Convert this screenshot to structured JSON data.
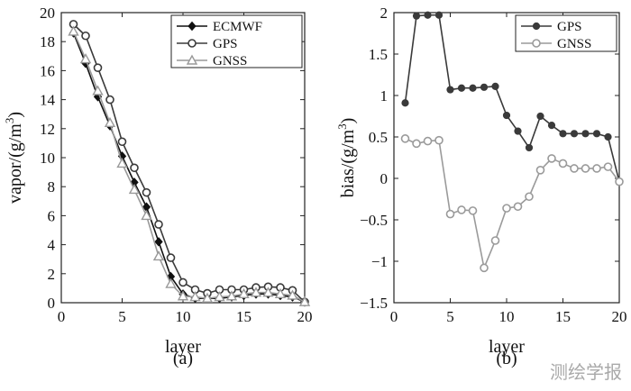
{
  "chart_data": [
    {
      "type": "line",
      "panel_label": "(a)",
      "xlabel": "layer",
      "ylabel": "vapor/(g/m",
      "ylabel_sup": "3",
      "ylabel_close": ")",
      "xlim": [
        0,
        20
      ],
      "ylim": [
        0,
        20
      ],
      "xticks": [
        0,
        5,
        10,
        15,
        20
      ],
      "yticks": [
        0,
        2,
        4,
        6,
        8,
        10,
        12,
        14,
        16,
        18,
        20
      ],
      "x": [
        1,
        2,
        3,
        4,
        5,
        6,
        7,
        8,
        9,
        10,
        11,
        12,
        13,
        14,
        15,
        16,
        17,
        18,
        19,
        20
      ],
      "legend_position": "top-right",
      "series": [
        {
          "name": "ECMWF",
          "marker": "diamond",
          "color": "#111111",
          "values": [
            18.6,
            16.5,
            14.2,
            12.2,
            10.1,
            8.3,
            6.6,
            4.2,
            1.8,
            0.6,
            0.3,
            0.3,
            0.3,
            0.4,
            0.5,
            0.6,
            0.6,
            0.5,
            0.4,
            0.05
          ]
        },
        {
          "name": "GPS",
          "marker": "circle",
          "color": "#3a3a3a",
          "values": [
            19.2,
            18.4,
            16.2,
            14.0,
            11.1,
            9.3,
            7.6,
            5.4,
            3.1,
            1.4,
            0.9,
            0.65,
            0.9,
            0.9,
            0.9,
            1.05,
            1.1,
            1.05,
            0.85,
            0.05
          ]
        },
        {
          "name": "GNSS",
          "marker": "triangle",
          "color": "#999999",
          "values": [
            18.7,
            16.8,
            14.6,
            12.4,
            9.6,
            7.8,
            6.0,
            3.2,
            1.3,
            0.45,
            0.4,
            0.3,
            0.4,
            0.45,
            0.6,
            0.7,
            0.7,
            0.6,
            0.5,
            0.05
          ]
        }
      ]
    },
    {
      "type": "line",
      "panel_label": "(b)",
      "xlabel": "layer",
      "ylabel": "bias/(g/m",
      "ylabel_sup": "3",
      "ylabel_close": ")",
      "xlim": [
        0,
        20
      ],
      "ylim": [
        -1.5,
        2
      ],
      "xticks": [
        0,
        5,
        10,
        15,
        20
      ],
      "yticks": [
        -1.5,
        -1,
        -0.5,
        0,
        0.5,
        1,
        1.5,
        2
      ],
      "ytick_labels": [
        "−1.5",
        "−1",
        "−0.5",
        "0",
        "0.5",
        "1",
        "1.5",
        "2"
      ],
      "x": [
        1,
        2,
        3,
        4,
        5,
        6,
        7,
        8,
        9,
        10,
        11,
        12,
        13,
        14,
        15,
        16,
        17,
        18,
        19,
        20
      ],
      "legend_position": "top-right",
      "series": [
        {
          "name": "GPS",
          "marker": "filled-circle",
          "color": "#3a3a3a",
          "values": [
            0.91,
            1.96,
            1.97,
            1.97,
            1.07,
            1.09,
            1.09,
            1.1,
            1.11,
            0.76,
            0.57,
            0.37,
            0.75,
            0.64,
            0.54,
            0.54,
            0.54,
            0.54,
            0.5,
            -0.04
          ]
        },
        {
          "name": "GNSS",
          "marker": "open-circle",
          "color": "#9a9a9a",
          "values": [
            0.48,
            0.42,
            0.45,
            0.46,
            -0.43,
            -0.38,
            -0.39,
            -1.08,
            -0.75,
            -0.36,
            -0.34,
            -0.22,
            0.1,
            0.24,
            0.18,
            0.12,
            0.12,
            0.12,
            0.14,
            -0.04
          ]
        }
      ]
    }
  ],
  "watermark": "测绘学报"
}
